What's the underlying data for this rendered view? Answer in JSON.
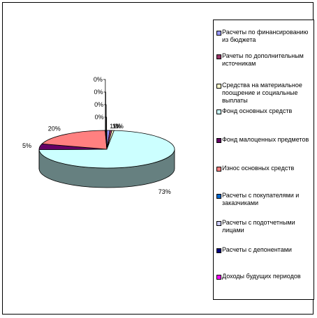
{
  "chart_data": {
    "type": "pie",
    "categories": [
      "Расчеты по финансированию из бюджета",
      "Рачеты по дополнительным источникам",
      "Средства на материальное поощрение и социальные выплаты",
      "Фонд основных средств",
      "Фонд малоценных предметов",
      "Износ основных средств",
      "Расчеты с покупателями и заказчиками",
      "Расчеты с подотчетными лицами",
      "Расчеты с депонентами",
      "Доходы будущих периодов"
    ],
    "values": [
      0.7,
      0.5,
      0.5,
      73,
      5,
      20,
      0.1,
      0.1,
      0.1,
      0.1
    ],
    "data_labels": [
      "1%",
      "1%",
      "0%",
      "73%",
      "5%",
      "20%",
      "0%",
      "0%",
      "0%",
      "0%"
    ],
    "colors": [
      "#9999ff",
      "#993366",
      "#ffffcc",
      "#ccffff",
      "#660066",
      "#ff8080",
      "#0066cc",
      "#ccccff",
      "#000080",
      "#ff00ff"
    ],
    "legend_position": "right",
    "style": "3d-pie"
  }
}
